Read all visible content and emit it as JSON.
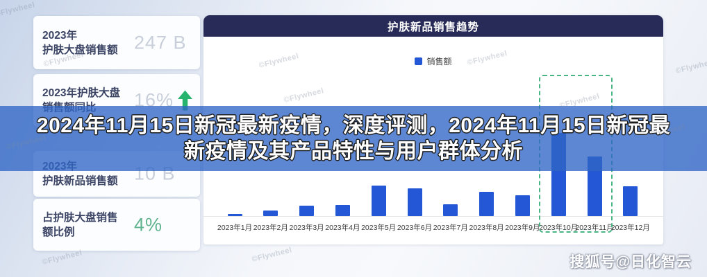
{
  "banner": {
    "line1": "2024年11月15日新冠最新疫情，深度评测，2024年11月15日新冠最",
    "line2": "新疫情及其产品特性与用户群体分析"
  },
  "sidebar": {
    "cards": [
      {
        "title_line1": "2023年",
        "title_line2": "护肤大盘销售额",
        "value": "247 B"
      },
      {
        "title_line1": "2023年护肤大盘",
        "title_line2": "销售额同比",
        "value": "16%",
        "trend_icon": "up-arrow"
      },
      {
        "title_line1": "2023年",
        "title_line2": "护肤新品销售额",
        "value": "10 B"
      },
      {
        "title_line1": "占护肤大盘销售",
        "title_line2": "额比例",
        "value": "4%"
      }
    ]
  },
  "chart": {
    "header": "护肤新品销售趋势",
    "legend_label": "销售额"
  },
  "chart_data": {
    "type": "bar",
    "title": "护肤新品销售趋势",
    "legend": [
      "销售额"
    ],
    "legend_position": "top-center",
    "categories": [
      "2023年1月",
      "2023年2月",
      "2023年3月",
      "2023年4月",
      "2023年5月",
      "2023年6月",
      "2023年7月",
      "2023年8月",
      "2023年9月",
      "2023年10月",
      "2023年11月",
      "2023年12月"
    ],
    "values": [
      3,
      8,
      15,
      16,
      44,
      40,
      17,
      35,
      30,
      120,
      86,
      43
    ],
    "units": "relative height (no y-axis ticks shown)",
    "xlabel": "",
    "ylabel": "",
    "grid": false,
    "y_axis_visible": false,
    "highlight": {
      "categories": [
        "2023年10月",
        "2023年11月"
      ],
      "style": "green-dashed-box"
    }
  },
  "watermark": {
    "flywheel": "©Flywheel",
    "brand": "搜狐号@日化智云"
  },
  "colors": {
    "bar_blue": "#2457D6",
    "banner_blue": "#2F65C5",
    "header_navy": "#282B57",
    "up_arrow_green": "#27B46E",
    "teal_value": "#62B491",
    "value_gray": "#C8CFDA",
    "highlight_dashed_green": "#49B585"
  }
}
